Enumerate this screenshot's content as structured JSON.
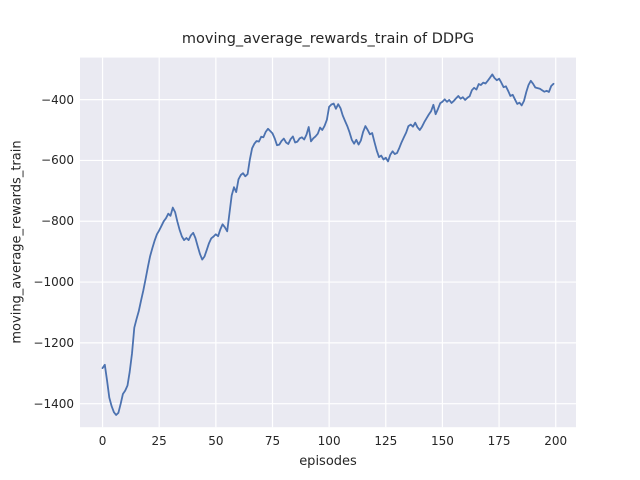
{
  "chart_data": {
    "type": "line",
    "title": "moving_average_rewards_train of DDPG",
    "xlabel": "episodes",
    "ylabel": "moving_average_rewards_train",
    "grid": true,
    "legend": false,
    "x_start": 0,
    "x_step": 1,
    "xlim": [
      -9.95,
      208.95
    ],
    "ylim": [
      -1477.25,
      -261.75
    ],
    "xticks": [
      0,
      25,
      50,
      75,
      100,
      125,
      150,
      175,
      200
    ],
    "yticks": [
      -1400,
      -1200,
      -1000,
      -800,
      -600,
      -400
    ],
    "xtick_labels": [
      "0",
      "25",
      "50",
      "75",
      "100",
      "125",
      "150",
      "175",
      "200"
    ],
    "ytick_labels": [
      "−1400",
      "−1200",
      "−1000",
      "−800",
      "−600",
      "−400"
    ],
    "colors": {
      "line": "#4C72B0",
      "plot_bg": "#EAEAF2",
      "grid": "#FFFFFF",
      "text": "#262626",
      "figure_bg": "#FFFFFF"
    },
    "series": [
      {
        "name": "moving_average_rewards_train",
        "values": [
          -1283,
          -1272,
          -1325,
          -1380,
          -1408,
          -1428,
          -1437,
          -1430,
          -1400,
          -1368,
          -1357,
          -1340,
          -1295,
          -1235,
          -1150,
          -1122,
          -1095,
          -1060,
          -1028,
          -990,
          -950,
          -915,
          -888,
          -863,
          -843,
          -830,
          -815,
          -800,
          -790,
          -775,
          -782,
          -755,
          -770,
          -800,
          -828,
          -850,
          -862,
          -855,
          -862,
          -846,
          -838,
          -855,
          -882,
          -908,
          -926,
          -916,
          -894,
          -872,
          -856,
          -850,
          -843,
          -849,
          -826,
          -810,
          -820,
          -833,
          -775,
          -715,
          -688,
          -704,
          -662,
          -648,
          -642,
          -652,
          -645,
          -598,
          -560,
          -545,
          -536,
          -538,
          -522,
          -524,
          -506,
          -496,
          -503,
          -511,
          -528,
          -550,
          -548,
          -536,
          -528,
          -541,
          -546,
          -530,
          -521,
          -541,
          -538,
          -527,
          -524,
          -531,
          -515,
          -490,
          -537,
          -527,
          -521,
          -512,
          -492,
          -500,
          -486,
          -466,
          -424,
          -416,
          -413,
          -430,
          -415,
          -428,
          -452,
          -470,
          -487,
          -507,
          -532,
          -545,
          -532,
          -548,
          -534,
          -506,
          -487,
          -500,
          -514,
          -510,
          -540,
          -567,
          -589,
          -584,
          -597,
          -591,
          -603,
          -581,
          -570,
          -579,
          -575,
          -558,
          -540,
          -524,
          -508,
          -487,
          -482,
          -489,
          -476,
          -491,
          -500,
          -489,
          -474,
          -461,
          -449,
          -438,
          -417,
          -448,
          -431,
          -412,
          -407,
          -399,
          -407,
          -401,
          -411,
          -404,
          -396,
          -388,
          -397,
          -392,
          -401,
          -394,
          -389,
          -369,
          -361,
          -367,
          -349,
          -352,
          -344,
          -347,
          -338,
          -328,
          -317,
          -329,
          -336,
          -331,
          -344,
          -359,
          -356,
          -371,
          -388,
          -384,
          -399,
          -414,
          -410,
          -419,
          -404,
          -375,
          -352,
          -338,
          -348,
          -360,
          -362,
          -364,
          -369,
          -374,
          -371,
          -375,
          -355,
          -348
        ]
      }
    ]
  }
}
